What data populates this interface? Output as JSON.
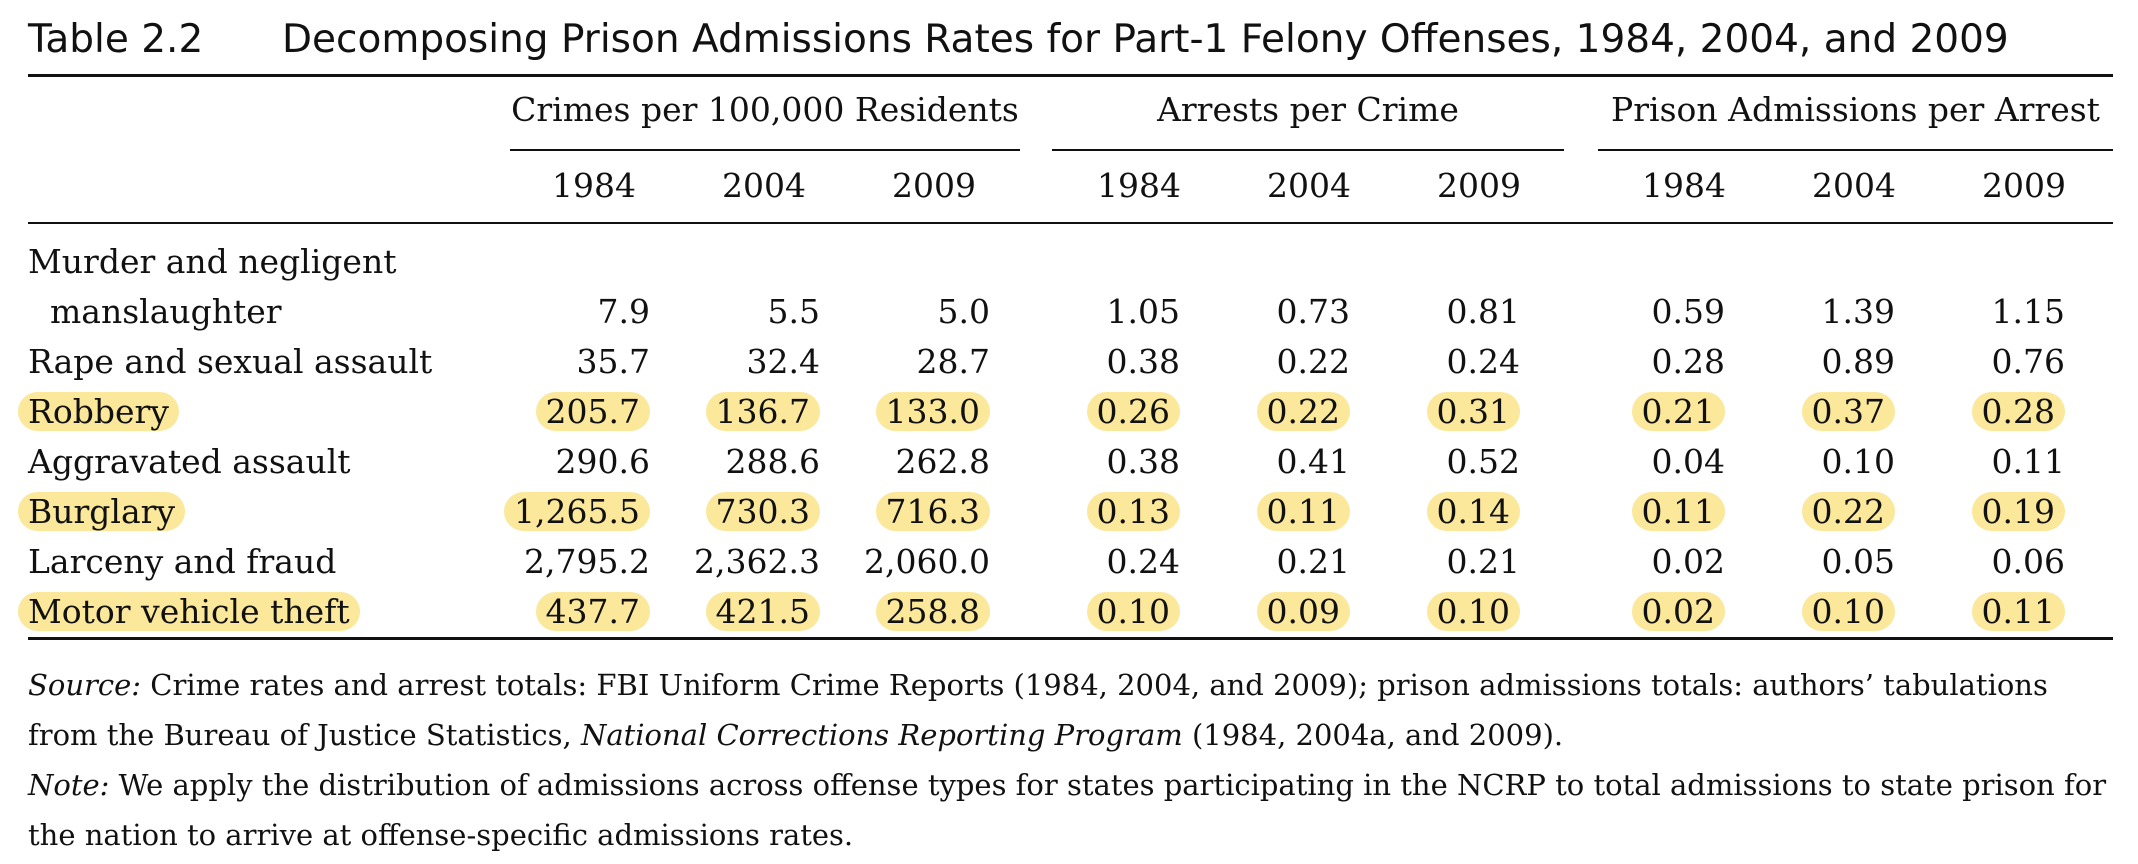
{
  "title": {
    "label": "Table 2.2",
    "text": "Decomposing Prison Admissions Rates for Part-1 Felony Offenses, 1984, 2004, and 2009"
  },
  "groups": [
    {
      "label": "Crimes per 100,000 Residents"
    },
    {
      "label": "Arrests per Crime"
    },
    {
      "label": "Prison Admissions per Arrest"
    }
  ],
  "years": [
    "1984",
    "2004",
    "2009",
    "1984",
    "2004",
    "2009",
    "1984",
    "2004",
    "2009"
  ],
  "rows": [
    {
      "label_line1": "Murder and negligent",
      "label_line2": "manslaughter",
      "highlight": false,
      "values": [
        "7.9",
        "5.5",
        "5.0",
        "1.05",
        "0.73",
        "0.81",
        "0.59",
        "1.39",
        "1.15"
      ]
    },
    {
      "label_line1": "Rape and sexual assault",
      "highlight": false,
      "values": [
        "35.7",
        "32.4",
        "28.7",
        "0.38",
        "0.22",
        "0.24",
        "0.28",
        "0.89",
        "0.76"
      ]
    },
    {
      "label_line1": "Robbery",
      "highlight": true,
      "values": [
        "205.7",
        "136.7",
        "133.0",
        "0.26",
        "0.22",
        "0.31",
        "0.21",
        "0.37",
        "0.28"
      ]
    },
    {
      "label_line1": "Aggravated assault",
      "highlight": false,
      "values": [
        "290.6",
        "288.6",
        "262.8",
        "0.38",
        "0.41",
        "0.52",
        "0.04",
        "0.10",
        "0.11"
      ]
    },
    {
      "label_line1": "Burglary",
      "highlight": true,
      "values": [
        "1,265.5",
        "730.3",
        "716.3",
        "0.13",
        "0.11",
        "0.14",
        "0.11",
        "0.22",
        "0.19"
      ]
    },
    {
      "label_line1": "Larceny and fraud",
      "highlight": false,
      "values": [
        "2,795.2",
        "2,362.3",
        "2,060.0",
        "0.24",
        "0.21",
        "0.21",
        "0.02",
        "0.05",
        "0.06"
      ]
    },
    {
      "label_line1": "Motor vehicle theft",
      "highlight": true,
      "values": [
        "437.7",
        "421.5",
        "258.8",
        "0.10",
        "0.09",
        "0.10",
        "0.02",
        "0.10",
        "0.11"
      ]
    }
  ],
  "notes": {
    "source_label": "Source:",
    "source_text_1": " Crime rates and arrest totals: FBI Uniform Crime Reports (1984, 2004, and 2009); prison admissions totals: authors’ tabulations from the Bureau of Justice Statistics, ",
    "source_italic": "National Corrections Reporting Program",
    "source_text_2": " (1984, 2004a, and 2009).",
    "note_label": "Note:",
    "note_text": " We apply the distribution of admissions across offense types for states participating in the NCRP to total admissions to state prison for the nation to arrive at offense-specific admissions rates."
  },
  "colors": {
    "highlight": "#fbe89a",
    "text": "#111111"
  }
}
